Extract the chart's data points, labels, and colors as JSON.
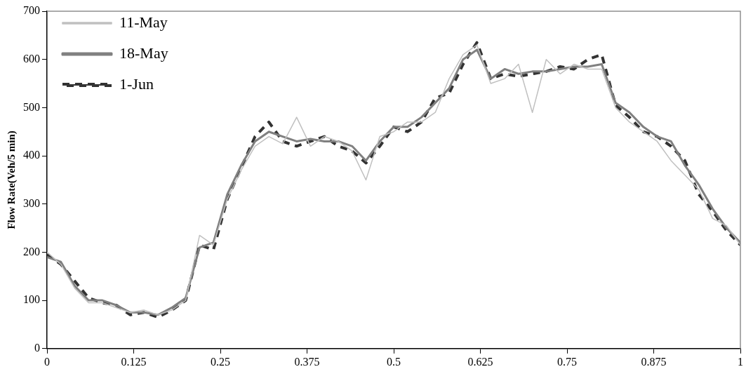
{
  "chart_data": {
    "type": "line",
    "ylabel": "Flow Rate(Veh/5 min)",
    "x": [
      0,
      0.02,
      0.04,
      0.06,
      0.08,
      0.1,
      0.12,
      0.14,
      0.16,
      0.18,
      0.2,
      0.22,
      0.24,
      0.26,
      0.28,
      0.3,
      0.32,
      0.34,
      0.36,
      0.38,
      0.4,
      0.42,
      0.44,
      0.46,
      0.48,
      0.5,
      0.52,
      0.54,
      0.56,
      0.58,
      0.6,
      0.62,
      0.64,
      0.66,
      0.68,
      0.7,
      0.72,
      0.74,
      0.76,
      0.78,
      0.8,
      0.82,
      0.84,
      0.86,
      0.88,
      0.9,
      0.92,
      0.94,
      0.96,
      0.98,
      1
    ],
    "xlim": [
      0,
      1
    ],
    "xticks": [
      0,
      0.125,
      0.25,
      0.375,
      0.5,
      0.625,
      0.75,
      0.875,
      1
    ],
    "ylim": [
      0,
      700
    ],
    "yticks": [
      0,
      100,
      200,
      300,
      400,
      500,
      600,
      700
    ],
    "legend": "top left",
    "marker": "none",
    "series": [
      {
        "name": "11-May",
        "color": "#c0c0c0",
        "line_style": "solid",
        "values": [
          200,
          175,
          125,
          95,
          95,
          85,
          75,
          80,
          70,
          80,
          100,
          235,
          215,
          310,
          370,
          420,
          440,
          425,
          480,
          420,
          440,
          430,
          410,
          350,
          440,
          450,
          470,
          470,
          490,
          560,
          610,
          630,
          550,
          560,
          590,
          490,
          600,
          570,
          590,
          580,
          580,
          500,
          470,
          450,
          430,
          390,
          360,
          330,
          270,
          255,
          215
        ]
      },
      {
        "name": "18-May",
        "color": "#808080",
        "line_style": "solid",
        "values": [
          190,
          180,
          130,
          100,
          100,
          90,
          75,
          75,
          70,
          85,
          105,
          210,
          220,
          320,
          380,
          430,
          450,
          440,
          430,
          435,
          430,
          430,
          420,
          390,
          430,
          460,
          460,
          480,
          510,
          540,
          600,
          620,
          560,
          580,
          570,
          575,
          575,
          580,
          585,
          585,
          590,
          510,
          490,
          460,
          440,
          430,
          380,
          340,
          290,
          250,
          220
        ]
      },
      {
        "name": "1-Jun",
        "color": "#333333",
        "line_style": "dashed",
        "values": [
          195,
          175,
          140,
          105,
          95,
          90,
          70,
          75,
          65,
          80,
          100,
          215,
          205,
          310,
          375,
          440,
          470,
          430,
          420,
          430,
          440,
          420,
          410,
          385,
          420,
          460,
          450,
          470,
          520,
          530,
          590,
          635,
          560,
          570,
          565,
          570,
          575,
          585,
          580,
          600,
          610,
          505,
          480,
          450,
          440,
          420,
          390,
          320,
          285,
          245,
          215
        ]
      }
    ]
  }
}
